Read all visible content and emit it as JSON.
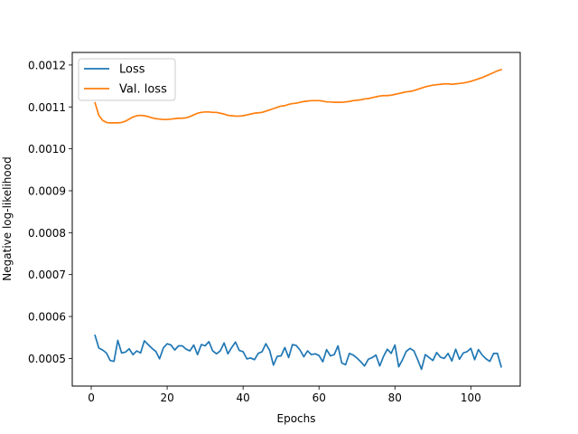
{
  "chart_data": {
    "type": "line",
    "title": "",
    "xlabel": "Epochs",
    "ylabel": "Negative log-likelihood",
    "xlim": [
      -5,
      113
    ],
    "ylim": [
      0.000434,
      0.00123
    ],
    "xticks": [
      0,
      20,
      40,
      60,
      80,
      100
    ],
    "yticks": [
      0.0005,
      0.0006,
      0.0007,
      0.0008,
      0.0009,
      0.001,
      0.0011,
      0.0012
    ],
    "ytick_labels": [
      "0.0005",
      "0.0006",
      "0.0007",
      "0.0008",
      "0.0009",
      "0.0010",
      "0.0011",
      "0.0012"
    ],
    "grid": false,
    "legend_position": "upper-left",
    "series": [
      {
        "name": "Loss",
        "color": "#1f77b4",
        "x": [
          1,
          2,
          3,
          4,
          5,
          6,
          7,
          8,
          9,
          10,
          11,
          12,
          13,
          14,
          15,
          16,
          17,
          18,
          19,
          20,
          21,
          22,
          23,
          24,
          25,
          26,
          27,
          28,
          29,
          30,
          31,
          32,
          33,
          34,
          35,
          36,
          37,
          38,
          39,
          40,
          41,
          42,
          43,
          44,
          45,
          46,
          47,
          48,
          49,
          50,
          51,
          52,
          53,
          54,
          55,
          56,
          57,
          58,
          59,
          60,
          61,
          62,
          63,
          64,
          65,
          66,
          67,
          68,
          69,
          70,
          71,
          72,
          73,
          74,
          75,
          76,
          77,
          78,
          79,
          80,
          81,
          82,
          83,
          84,
          85,
          86,
          87,
          88,
          89,
          90,
          91,
          92,
          93,
          94,
          95,
          96,
          97,
          98,
          99,
          100,
          101,
          102,
          103,
          104,
          105,
          106,
          107,
          108
        ],
        "values": [
          0.000555,
          0.000525,
          0.00052,
          0.000513,
          0.000495,
          0.000493,
          0.000543,
          0.000513,
          0.000515,
          0.000523,
          0.000509,
          0.000518,
          0.000513,
          0.000542,
          0.000533,
          0.000524,
          0.000517,
          0.000499,
          0.000525,
          0.000535,
          0.000532,
          0.00052,
          0.00053,
          0.00053,
          0.000522,
          0.000518,
          0.000532,
          0.000509,
          0.000533,
          0.00053,
          0.00054,
          0.000518,
          0.000511,
          0.000518,
          0.000537,
          0.000511,
          0.000526,
          0.000539,
          0.000519,
          0.000516,
          0.000499,
          0.000501,
          0.000497,
          0.000512,
          0.000516,
          0.000535,
          0.000519,
          0.000484,
          0.000505,
          0.000506,
          0.000526,
          0.000502,
          0.000533,
          0.000531,
          0.00052,
          0.000504,
          0.000518,
          0.000509,
          0.000511,
          0.000507,
          0.000492,
          0.000521,
          0.000506,
          0.000509,
          0.00053,
          0.000489,
          0.000485,
          0.000512,
          0.000508,
          0.000501,
          0.000492,
          0.000482,
          0.000498,
          0.000502,
          0.000508,
          0.000482,
          0.000505,
          0.000522,
          0.000512,
          0.000532,
          0.00048,
          0.000497,
          0.000517,
          0.000524,
          0.000518,
          0.000497,
          0.000474,
          0.000509,
          0.000502,
          0.000495,
          0.000514,
          0.000503,
          0.0005,
          0.000512,
          0.000494,
          0.000522,
          0.000498,
          0.000513,
          0.000516,
          0.000524,
          0.000497,
          0.000521,
          0.000508,
          0.000499,
          0.000493,
          0.000512,
          0.000512,
          0.00048
        ]
      },
      {
        "name": "Val. loss",
        "color": "#ff7f0e",
        "x": [
          1,
          2,
          3,
          4,
          5,
          6,
          7,
          8,
          9,
          10,
          11,
          12,
          13,
          14,
          15,
          16,
          17,
          18,
          19,
          20,
          21,
          22,
          23,
          24,
          25,
          26,
          27,
          28,
          29,
          30,
          31,
          32,
          33,
          34,
          35,
          36,
          37,
          38,
          39,
          40,
          41,
          42,
          43,
          44,
          45,
          46,
          47,
          48,
          49,
          50,
          51,
          52,
          53,
          54,
          55,
          56,
          57,
          58,
          59,
          60,
          61,
          62,
          63,
          64,
          65,
          66,
          67,
          68,
          69,
          70,
          71,
          72,
          73,
          74,
          75,
          76,
          77,
          78,
          79,
          80,
          81,
          82,
          83,
          84,
          85,
          86,
          87,
          88,
          89,
          90,
          91,
          92,
          93,
          94,
          95,
          96,
          97,
          98,
          99,
          100,
          101,
          102,
          103,
          104,
          105,
          106,
          107,
          108
        ],
        "values": [
          0.00111,
          0.00108,
          0.001068,
          0.001063,
          0.001062,
          0.001062,
          0.001062,
          0.001063,
          0.001066,
          0.001071,
          0.001076,
          0.001079,
          0.00108,
          0.001079,
          0.001077,
          0.001074,
          0.001072,
          0.001071,
          0.00107,
          0.00107,
          0.001071,
          0.001072,
          0.001073,
          0.001073,
          0.001074,
          0.001077,
          0.001081,
          0.001085,
          0.001087,
          0.001088,
          0.001088,
          0.001087,
          0.001087,
          0.001085,
          0.001083,
          0.00108,
          0.001079,
          0.001078,
          0.001078,
          0.001079,
          0.001081,
          0.001083,
          0.001085,
          0.001086,
          0.001087,
          0.00109,
          0.001093,
          0.001096,
          0.001099,
          0.001102,
          0.001103,
          0.001106,
          0.001108,
          0.001109,
          0.001111,
          0.001113,
          0.001114,
          0.001115,
          0.001115,
          0.001115,
          0.001114,
          0.001112,
          0.001112,
          0.001111,
          0.001111,
          0.001111,
          0.001112,
          0.001113,
          0.001115,
          0.001116,
          0.001117,
          0.001119,
          0.00112,
          0.001122,
          0.001124,
          0.001126,
          0.001127,
          0.001127,
          0.001128,
          0.00113,
          0.001132,
          0.001134,
          0.001136,
          0.001137,
          0.001139,
          0.001142,
          0.001145,
          0.001148,
          0.00115,
          0.001152,
          0.001153,
          0.001154,
          0.001155,
          0.001155,
          0.001154,
          0.001155,
          0.001156,
          0.001157,
          0.001159,
          0.001161,
          0.001164,
          0.001167,
          0.00117,
          0.001174,
          0.001178,
          0.001182,
          0.001186,
          0.001189
        ]
      }
    ]
  }
}
